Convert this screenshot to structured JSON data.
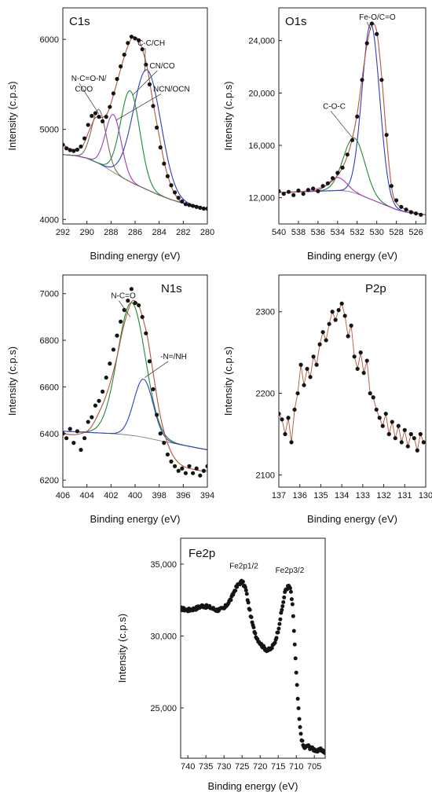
{
  "chart_data": [
    {
      "id": "c1s",
      "type": "line",
      "title": "C1s",
      "xlabel": "Binding energy (eV)",
      "ylabel": "Intensity (c.p.s)",
      "xlim": [
        292,
        280
      ],
      "ylim": [
        3950,
        6350
      ],
      "xticks": [
        292,
        290,
        288,
        286,
        284,
        282,
        280
      ],
      "yticks": [
        4000,
        5000,
        6000
      ],
      "ytick_labels": [
        "4000",
        "5000",
        "6000"
      ],
      "grid": false,
      "annotations": [
        "N-C=O-N/",
        "COO",
        "C-C/CH",
        "CN/CO",
        "NCN/OCN"
      ],
      "series": [
        {
          "kind": "points",
          "x": [
            292.0,
            291.7,
            291.4,
            291.1,
            290.8,
            290.5,
            290.2,
            289.9,
            289.6,
            289.3,
            289.0,
            288.7,
            288.4,
            288.1,
            287.8,
            287.5,
            287.2,
            286.9,
            286.6,
            286.3,
            286.0,
            285.7,
            285.4,
            285.1,
            284.8,
            284.5,
            284.2,
            283.9,
            283.6,
            283.3,
            283.0,
            282.7,
            282.4,
            282.1,
            281.8,
            281.5,
            281.2,
            280.9,
            280.6,
            280.3,
            280.0
          ],
          "y": [
            4830,
            4790,
            4770,
            4760,
            4775,
            4810,
            4900,
            5050,
            5150,
            5180,
            5140,
            5090,
            5140,
            5250,
            5400,
            5560,
            5700,
            5830,
            5960,
            6030,
            6010,
            5990,
            5890,
            5720,
            5500,
            5260,
            5020,
            4800,
            4620,
            4480,
            4380,
            4300,
            4240,
            4200,
            4170,
            4160,
            4150,
            4140,
            4130,
            4120,
            4120
          ]
        },
        {
          "kind": "envelope",
          "color": "#b5553a",
          "x": [
            292.0,
            291.2,
            290.4,
            289.8,
            289.3,
            288.8,
            288.3,
            287.8,
            287.3,
            286.8,
            286.3,
            285.9,
            285.5,
            285.0,
            284.5,
            284.0,
            283.5,
            283.0,
            282.5,
            282.0,
            281.0,
            280.0
          ],
          "y": [
            4830,
            4780,
            4810,
            4990,
            5130,
            5130,
            5180,
            5380,
            5620,
            5850,
            6010,
            6020,
            5930,
            5690,
            5290,
            4930,
            4590,
            4370,
            4240,
            4180,
            4140,
            4120
          ]
        },
        {
          "kind": "baseline",
          "color": "#808080",
          "x": [
            292.0,
            291.0,
            290.0,
            289.0,
            288.0,
            287.0,
            286.0,
            285.0,
            284.0,
            283.0,
            282.0,
            281.0,
            280.0
          ],
          "y": [
            4720,
            4710,
            4680,
            4620,
            4540,
            4460,
            4390,
            4330,
            4270,
            4220,
            4180,
            4150,
            4120
          ]
        },
        {
          "kind": "component",
          "color": "#2e3fc2",
          "center": 285.0,
          "width": 1.15,
          "amplitude": 1330
        },
        {
          "kind": "component",
          "color": "#1e8a3a",
          "center": 286.4,
          "width": 0.8,
          "amplitude": 1010
        },
        {
          "kind": "component",
          "color": "#a23bc0",
          "center": 287.8,
          "width": 0.65,
          "amplitude": 640
        },
        {
          "kind": "component",
          "color": "#7a6a5a",
          "center": 289.0,
          "width": 0.6,
          "amplitude": 600
        }
      ]
    },
    {
      "id": "o1s",
      "type": "line",
      "title": "O1s",
      "xlabel": "Binding energy (eV)",
      "ylabel": "Intensity (c.p.s)",
      "xlim": [
        540,
        525
      ],
      "ylim": [
        10000,
        26500
      ],
      "xticks": [
        540,
        538,
        536,
        534,
        532,
        530,
        528,
        526
      ],
      "yticks": [
        12000,
        16000,
        20000,
        24000
      ],
      "ytick_labels": [
        "12,000",
        "16,000",
        "20,000",
        "24,000"
      ],
      "grid": false,
      "annotations": [
        "Fe-O/C=O",
        "C-O-C"
      ],
      "series": [
        {
          "kind": "points",
          "x": [
            540.0,
            539.5,
            539.0,
            538.5,
            538.0,
            537.5,
            537.0,
            536.5,
            536.0,
            535.5,
            535.0,
            534.5,
            534.0,
            533.5,
            533.0,
            532.5,
            532.0,
            531.5,
            531.0,
            530.5,
            530.0,
            529.5,
            529.0,
            528.5,
            528.0,
            527.5,
            527.0,
            526.5,
            526.0,
            525.5
          ],
          "y": [
            12500,
            12300,
            12450,
            12200,
            12550,
            12300,
            12600,
            12700,
            12500,
            12900,
            13100,
            13500,
            13900,
            14300,
            15300,
            16400,
            18200,
            21000,
            23800,
            25300,
            24500,
            21000,
            16800,
            12900,
            11800,
            11300,
            11100,
            10900,
            10800,
            10700
          ]
        },
        {
          "kind": "envelope",
          "color": "#b5553a",
          "x": [
            540.0,
            539.0,
            538.0,
            537.0,
            536.0,
            535.0,
            534.0,
            533.5,
            533.0,
            532.5,
            532.0,
            531.5,
            531.0,
            530.5,
            530.0,
            529.5,
            529.0,
            528.5,
            528.0,
            527.0,
            526.0,
            525.0
          ],
          "y": [
            12400,
            12400,
            12450,
            12550,
            12700,
            13000,
            13700,
            14300,
            15200,
            16500,
            18400,
            21100,
            23700,
            25200,
            24700,
            21300,
            16600,
            12900,
            11600,
            11100,
            10850,
            10700
          ]
        },
        {
          "kind": "baseline",
          "color": "#808080",
          "x": [
            540.0,
            538.0,
            536.0,
            534.0,
            533.0,
            532.0,
            531.0,
            530.0,
            529.0,
            528.0,
            527.0,
            526.0,
            525.0
          ],
          "y": [
            12400,
            12450,
            12500,
            12550,
            12500,
            12300,
            12000,
            11700,
            11400,
            11100,
            10900,
            10800,
            10700
          ]
        },
        {
          "kind": "component",
          "color": "#2e3fc2",
          "center": 530.6,
          "width": 0.9,
          "amplitude": 13400
        },
        {
          "kind": "component",
          "color": "#1e8a3a",
          "center": 532.3,
          "width": 1.1,
          "amplitude": 4200
        },
        {
          "kind": "component",
          "color": "#a23bc0",
          "center": 534.0,
          "width": 0.9,
          "amplitude": 1000
        }
      ]
    },
    {
      "id": "n1s",
      "type": "line",
      "title": "N1s",
      "xlabel": "Binding energy (eV)",
      "ylabel": "Intensity (c.p.s)",
      "xlim": [
        406,
        394
      ],
      "ylim": [
        6170,
        7080
      ],
      "xticks": [
        406,
        404,
        402,
        400,
        398,
        396,
        394
      ],
      "yticks": [
        6200,
        6400,
        6600,
        6800,
        7000
      ],
      "ytick_labels": [
        "6200",
        "6400",
        "6600",
        "6800",
        "7000"
      ],
      "grid": false,
      "annotations": [
        "N-C=O",
        "-N=/NH"
      ],
      "series": [
        {
          "kind": "points",
          "x": [
            406.0,
            405.7,
            405.4,
            405.1,
            404.8,
            404.5,
            404.2,
            403.9,
            403.6,
            403.3,
            403.0,
            402.7,
            402.4,
            402.1,
            401.8,
            401.5,
            401.2,
            400.9,
            400.6,
            400.3,
            400.0,
            399.7,
            399.4,
            399.1,
            398.8,
            398.5,
            398.2,
            397.9,
            397.6,
            397.3,
            397.0,
            396.7,
            396.4,
            396.1,
            395.8,
            395.5,
            395.2,
            394.9,
            394.6,
            394.3,
            394.0
          ],
          "y": [
            6400,
            6380,
            6420,
            6360,
            6410,
            6330,
            6380,
            6450,
            6470,
            6520,
            6540,
            6580,
            6640,
            6700,
            6760,
            6820,
            6880,
            6930,
            6970,
            7020,
            6960,
            6950,
            6900,
            6830,
            6710,
            6590,
            6480,
            6400,
            6360,
            6310,
            6280,
            6260,
            6240,
            6250,
            6230,
            6260,
            6230,
            6250,
            6220,
            6240,
            6260
          ]
        },
        {
          "kind": "envelope",
          "color": "#b5553a",
          "x": [
            406.0,
            405.0,
            404.0,
            403.5,
            403.0,
            402.5,
            402.0,
            401.5,
            401.0,
            400.5,
            400.2,
            399.8,
            399.5,
            399.0,
            398.5,
            398.0,
            397.5,
            397.0,
            396.5,
            396.0,
            395.5,
            395.0,
            394.5,
            394.0
          ],
          "y": [
            6400,
            6395,
            6410,
            6440,
            6490,
            6550,
            6630,
            6730,
            6850,
            6940,
            6970,
            6960,
            6920,
            6820,
            6660,
            6500,
            6390,
            6320,
            6280,
            6260,
            6250,
            6245,
            6240,
            6240
          ]
        },
        {
          "kind": "baseline",
          "color": "#808080",
          "x": [
            406.0,
            404.0,
            402.0,
            400.0,
            398.0,
            396.0,
            394.0
          ],
          "y": [
            6410,
            6405,
            6400,
            6390,
            6370,
            6350,
            6330
          ]
        },
        {
          "kind": "component",
          "color": "#1e8a3a",
          "center": 400.3,
          "width": 1.15,
          "amplitude": 570
        },
        {
          "kind": "component",
          "color": "#2e3fc2",
          "center": 399.3,
          "width": 0.8,
          "amplitude": 250
        }
      ]
    },
    {
      "id": "p2p",
      "type": "line",
      "title": "P2p",
      "xlabel": "Binding energy (eV)",
      "ylabel": "Intensity (c.p.s)",
      "xlim": [
        137,
        130
      ],
      "ylim": [
        2085,
        2345
      ],
      "xticks": [
        137,
        136,
        135,
        134,
        133,
        132,
        131,
        130
      ],
      "yticks": [
        2100,
        2200,
        2300
      ],
      "ytick_labels": [
        "2100",
        "2200",
        "2300"
      ],
      "grid": false,
      "annotations": [],
      "series": [
        {
          "kind": "points_joined",
          "color": "#b5553a",
          "x": [
            137.0,
            136.85,
            136.7,
            136.55,
            136.4,
            136.25,
            136.1,
            135.95,
            135.8,
            135.65,
            135.5,
            135.35,
            135.2,
            135.05,
            134.9,
            134.75,
            134.6,
            134.45,
            134.3,
            134.15,
            134.0,
            133.85,
            133.7,
            133.55,
            133.4,
            133.25,
            133.1,
            132.95,
            132.8,
            132.65,
            132.5,
            132.35,
            132.2,
            132.05,
            131.9,
            131.75,
            131.6,
            131.45,
            131.3,
            131.15,
            131.0,
            130.85,
            130.7,
            130.55,
            130.4,
            130.25,
            130.1
          ],
          "y": [
            2175,
            2168,
            2150,
            2170,
            2140,
            2180,
            2200,
            2235,
            2210,
            2230,
            2220,
            2245,
            2235,
            2260,
            2275,
            2265,
            2285,
            2300,
            2290,
            2302,
            2310,
            2295,
            2270,
            2283,
            2245,
            2230,
            2250,
            2225,
            2240,
            2200,
            2195,
            2180,
            2170,
            2160,
            2175,
            2150,
            2165,
            2145,
            2160,
            2140,
            2155,
            2135,
            2150,
            2145,
            2130,
            2150,
            2140
          ]
        }
      ]
    },
    {
      "id": "fe2p",
      "type": "line",
      "title": "Fe2p",
      "xlabel": "Binding energy (eV)",
      "ylabel": "Intensity (c.p.s)",
      "xlim": [
        742,
        702
      ],
      "ylim": [
        21500,
        36800
      ],
      "xticks": [
        740,
        735,
        730,
        725,
        720,
        715,
        710,
        705
      ],
      "yticks": [
        25000,
        30000,
        35000
      ],
      "ytick_labels": [
        "25,000",
        "30,000",
        "35,000"
      ],
      "grid": false,
      "annotations": [
        "Fe2p1/2",
        "Fe2p3/2"
      ],
      "series": [
        {
          "kind": "dense_points",
          "x": [
            742,
            740,
            738,
            736,
            734,
            732,
            730,
            728,
            727,
            726,
            725,
            724,
            723,
            722,
            721,
            720,
            719,
            718,
            717,
            716,
            715,
            714,
            713,
            712,
            711.5,
            711,
            710.5,
            710,
            709.5,
            709,
            708.5,
            708,
            707.5,
            707,
            706,
            705,
            704,
            703,
            702
          ],
          "y": [
            31900,
            31800,
            31900,
            32100,
            32000,
            31800,
            31900,
            32600,
            33200,
            33600,
            33800,
            33300,
            31900,
            30700,
            29900,
            29500,
            29200,
            29000,
            29100,
            29500,
            30400,
            31800,
            33200,
            33500,
            33100,
            32000,
            29800,
            27400,
            25300,
            23700,
            22800,
            22300,
            22200,
            22400,
            22200,
            22100,
            22000,
            22100,
            21900
          ]
        }
      ]
    }
  ]
}
